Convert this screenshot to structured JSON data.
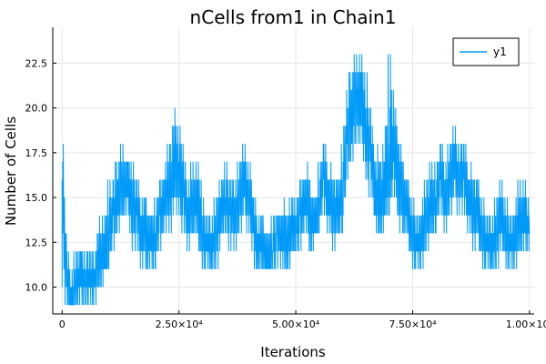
{
  "chart_data": {
    "type": "line",
    "title": "nCells from1 in Chain1",
    "xlabel": "Iterations",
    "ylabel": "Number of Cells",
    "xlim": [
      -2000,
      101000
    ],
    "ylim": [
      8.5,
      24.5
    ],
    "grid": true,
    "legend_position": "top-right",
    "x_ticks": [
      0,
      25000,
      50000,
      75000,
      100000
    ],
    "x_tick_labels": [
      "0",
      "2.50×10⁴",
      "5.00×10⁴",
      "7.50×10⁴",
      "1.00×10⁵"
    ],
    "y_ticks": [
      10.0,
      12.5,
      15.0,
      17.5,
      20.0,
      22.5
    ],
    "y_tick_labels": [
      "10.0",
      "12.5",
      "15.0",
      "17.5",
      "20.0",
      "22.5"
    ],
    "series": [
      {
        "name": "y1",
        "color": "#009af9",
        "x": [
          0,
          1000,
          2000,
          3000,
          4000,
          5000,
          6000,
          7000,
          8000,
          9000,
          10000,
          11000,
          12000,
          13000,
          14000,
          15000,
          16000,
          17000,
          18000,
          19000,
          20000,
          21000,
          22000,
          23000,
          24000,
          25000,
          26000,
          27000,
          28000,
          29000,
          30000,
          31000,
          32000,
          33000,
          34000,
          35000,
          36000,
          37000,
          38000,
          39000,
          40000,
          41000,
          42000,
          43000,
          44000,
          45000,
          46000,
          47000,
          48000,
          49000,
          50000,
          51000,
          52000,
          53000,
          54000,
          55000,
          56000,
          57000,
          58000,
          59000,
          60000,
          61000,
          62000,
          63000,
          64000,
          65000,
          66000,
          67000,
          68000,
          69000,
          70000,
          71000,
          72000,
          73000,
          74000,
          75000,
          76000,
          77000,
          78000,
          79000,
          80000,
          81000,
          82000,
          83000,
          84000,
          85000,
          86000,
          87000,
          88000,
          89000,
          90000,
          91000,
          92000,
          93000,
          94000,
          95000,
          96000,
          97000,
          98000,
          99000,
          100000
        ],
        "y": [
          16,
          10,
          9,
          10,
          11,
          10,
          10,
          11,
          12,
          11,
          13,
          14,
          15,
          16,
          16,
          15,
          14,
          13,
          13,
          12,
          13,
          14,
          15,
          15,
          16,
          17,
          15,
          14,
          15,
          14,
          13,
          12,
          12,
          13,
          14,
          15,
          14,
          14,
          15,
          16,
          15,
          13,
          12,
          12,
          11,
          12,
          13,
          13,
          12,
          13,
          13,
          14,
          15,
          14,
          13,
          15,
          16,
          15,
          14,
          14,
          15,
          18,
          20,
          21,
          20,
          19,
          18,
          15,
          14,
          15,
          16,
          17,
          16,
          15,
          14,
          13,
          12,
          13,
          14,
          14,
          15,
          16,
          15,
          16,
          17,
          16,
          16,
          15,
          14,
          14,
          13,
          12,
          12,
          13,
          14,
          13,
          12,
          13,
          14,
          13,
          13
        ],
        "min": [
          10,
          9,
          9,
          9,
          9,
          9,
          9,
          9,
          10,
          10,
          11,
          12,
          13,
          14,
          13,
          12,
          12,
          11,
          11,
          11,
          11,
          12,
          13,
          13,
          14,
          14,
          13,
          12,
          13,
          12,
          11,
          11,
          11,
          11,
          12,
          13,
          12,
          12,
          13,
          13,
          13,
          11,
          11,
          11,
          11,
          11,
          11,
          11,
          11,
          11,
          12,
          12,
          13,
          12,
          12,
          13,
          14,
          13,
          12,
          12,
          13,
          16,
          17,
          18,
          17,
          16,
          15,
          13,
          13,
          13,
          14,
          15,
          13,
          13,
          12,
          11,
          11,
          11,
          12,
          12,
          13,
          14,
          13,
          14,
          14,
          14,
          14,
          13,
          12,
          12,
          11,
          11,
          11,
          11,
          12,
          11,
          11,
          11,
          12,
          12,
          12
        ],
        "max": [
          20,
          12,
          11,
          12,
          12,
          12,
          12,
          12,
          14,
          14,
          16,
          16,
          18,
          18,
          17,
          17,
          16,
          15,
          15,
          14,
          15,
          16,
          17,
          18,
          20,
          19,
          18,
          16,
          17,
          17,
          15,
          14,
          14,
          15,
          16,
          17,
          16,
          16,
          17,
          18,
          17,
          15,
          14,
          14,
          13,
          14,
          14,
          15,
          14,
          15,
          15,
          16,
          17,
          16,
          15,
          17,
          18,
          17,
          16,
          16,
          18,
          21,
          23,
          23,
          23,
          22,
          20,
          18,
          17,
          18,
          24,
          21,
          19,
          17,
          16,
          15,
          14,
          15,
          16,
          17,
          17,
          18,
          17,
          18,
          19,
          18,
          18,
          17,
          16,
          16,
          15,
          14,
          14,
          15,
          16,
          15,
          14,
          15,
          16,
          16,
          15
        ]
      }
    ]
  }
}
